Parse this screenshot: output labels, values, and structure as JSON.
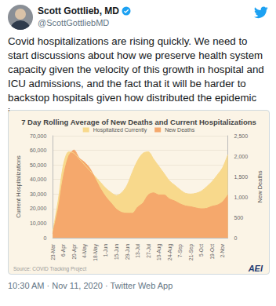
{
  "tweet": {
    "name": "Scott Gottlieb, MD",
    "handle": "@ScottGottliebMD",
    "text": "Covid hospitalizations are rising quickly. We need to start discussions about how we preserve health system capacity given the velocity of this growth in hospital and ICU admissions, and the fact that it will be harder to backstop hospitals given how distributed the epidemic is.",
    "timestamp": "10:30 AM · Nov 11, 2020 · Twitter Web App"
  },
  "chart_data": {
    "type": "area",
    "title": "7 Day Rolling Average of New Deaths and Current Hospitalizations",
    "ylabel": "Current Hospitalizations",
    "y2label": "New Deaths",
    "source": "Source: COVID Tracking Project",
    "logo": "AEI",
    "categories": [
      "23-Mar",
      null,
      "6-Apr",
      null,
      "20-Apr",
      null,
      "4-May",
      null,
      "18-May",
      null,
      "1-Jun",
      null,
      "15-Jun",
      null,
      "29-Jun",
      null,
      "13-Jul",
      null,
      "27-Jul",
      null,
      "10-Aug",
      null,
      "24-Aug",
      null,
      "7-Sep",
      null,
      "21-Sep",
      null,
      "5-Oct",
      null,
      "19-Oct",
      null,
      "2-Nov",
      null
    ],
    "series": [
      {
        "name": "Hospitalized Currently",
        "color": "#f8d98c",
        "values": [
          4000,
          25000,
          50000,
          59000,
          58000,
          54000,
          50000,
          46000,
          42000,
          38000,
          34000,
          31000,
          29000,
          31000,
          36000,
          45000,
          53000,
          58000,
          59000,
          54000,
          49000,
          44000,
          39000,
          36000,
          33000,
          30500,
          30000,
          30500,
          32000,
          35000,
          38500,
          43000,
          48000,
          57000
        ]
      },
      {
        "name": "New Deaths",
        "color": "#f5a86c",
        "axis": "y2",
        "values": [
          100,
          700,
          1500,
          2000,
          2150,
          1950,
          1850,
          1700,
          1450,
          1200,
          1000,
          850,
          700,
          620,
          600,
          600,
          750,
          850,
          1050,
          1100,
          1050,
          1050,
          950,
          900,
          830,
          780,
          760,
          730,
          710,
          720,
          770,
          800,
          880,
          1050
        ]
      }
    ],
    "ylim": [
      0,
      70000
    ],
    "yticks": [
      0,
      {
        "value": 10000,
        "label": "10,000"
      },
      {
        "value": 20000,
        "label": "20,000"
      },
      {
        "value": 30000,
        "label": "30,000"
      },
      {
        "value": 40000,
        "label": "40,000"
      },
      {
        "value": 50000,
        "label": "50,000"
      },
      {
        "value": 60000,
        "label": "60,000"
      },
      {
        "value": 70000,
        "label": "70,000"
      }
    ],
    "y2lim": [
      0,
      2500
    ],
    "y2ticks": [
      0,
      500,
      {
        "value": 1000,
        "label": "1,000"
      },
      {
        "value": 1500,
        "label": "1,500"
      },
      {
        "value": 2000,
        "label": "2,000"
      },
      {
        "value": 2500,
        "label": "2,500"
      }
    ],
    "grid": true,
    "legend": "top"
  }
}
